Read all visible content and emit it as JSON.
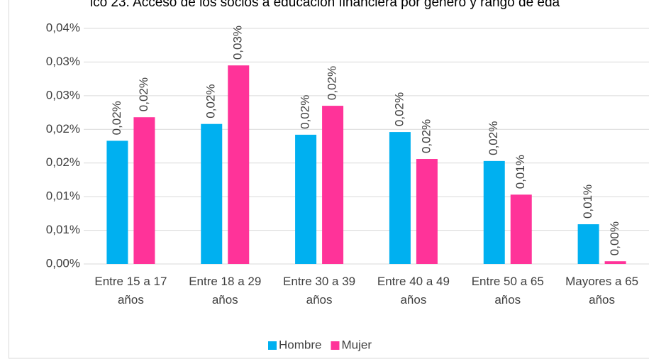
{
  "chart_data": {
    "type": "bar",
    "title": "ico 23. Acceso de los socios a educación financiera por género y rango de eda",
    "categories": [
      "Entre 15 a 17 años",
      "Entre 18 a 29 años",
      "Entre 30 a 39 años",
      "Entre 40 a 49 años",
      "Entre 50 a 65 años",
      "Mayores a 65 años"
    ],
    "series": [
      {
        "name": "Hombre",
        "color": "#00b0f0",
        "values": [
          0.0183,
          0.0208,
          0.0192,
          0.0196,
          0.0153,
          0.0059
        ],
        "value_labels": [
          "0,02%",
          "0,02%",
          "0,02%",
          "0,02%",
          "0,02%",
          "0,01%"
        ]
      },
      {
        "name": "Mujer",
        "color": "#ff3399",
        "values": [
          0.0218,
          0.0295,
          0.0235,
          0.0156,
          0.0103,
          0.0004
        ],
        "value_labels": [
          "0,02%",
          "0,03%",
          "0,02%",
          "0,02%",
          "0,01%",
          "0,00%"
        ]
      }
    ],
    "ylim": [
      0,
      0.035
    ],
    "yticks": [
      {
        "value": 0,
        "label": "0,00%"
      },
      {
        "value": 0.005,
        "label": "0,01%"
      },
      {
        "value": 0.01,
        "label": "0,01%"
      },
      {
        "value": 0.015,
        "label": "0,02%"
      },
      {
        "value": 0.02,
        "label": "0,02%"
      },
      {
        "value": 0.025,
        "label": "0,03%"
      },
      {
        "value": 0.03,
        "label": "0,03%"
      },
      {
        "value": 0.035,
        "label": "0,04%"
      }
    ],
    "grid": true,
    "legend": "bottom"
  }
}
